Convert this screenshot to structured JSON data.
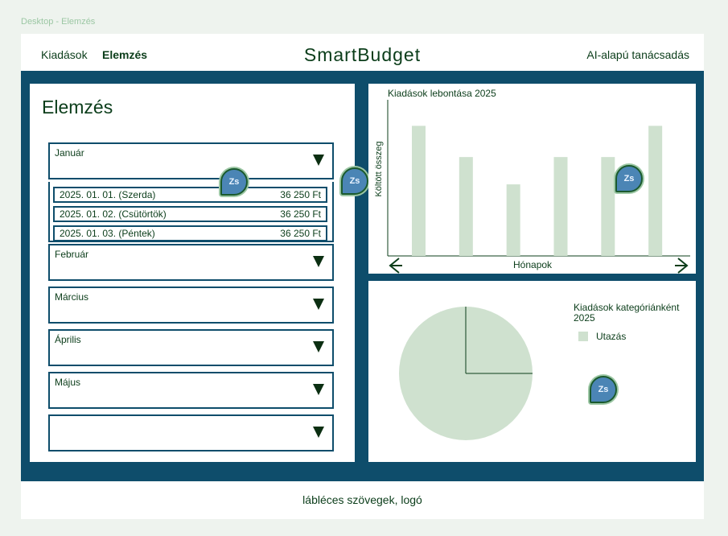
{
  "frame_label": "Desktop - Elemzés",
  "header": {
    "nav": [
      "Kiadások",
      "Elemzés"
    ],
    "active_nav": "Elemzés",
    "brand": "SmartBudget",
    "ai_link": "AI-alapú tanácsadás"
  },
  "analysis": {
    "title": "Elemzés",
    "months": [
      "Január",
      "Február",
      "Március",
      "Április",
      "Május",
      ""
    ],
    "january_entries": [
      {
        "date": "2025. 01. 01.  (Szerda)",
        "amount": "36 250 Ft"
      },
      {
        "date": "2025. 01. 02.  (Csütörtök)",
        "amount": "36 250 Ft"
      },
      {
        "date": "2025. 01. 03.  (Péntek)",
        "amount": "36 250 Ft"
      }
    ]
  },
  "comment_avatar": "Zs",
  "chart_data": [
    {
      "type": "bar",
      "title": "Kiadások lebontása 2025",
      "xlabel": "Hónapok",
      "ylabel": "Költött összeg",
      "categories": [
        "",
        "",
        "",
        "",
        "",
        ""
      ],
      "values": [
        100,
        76,
        55,
        76,
        76,
        100
      ],
      "ylim": [
        0,
        120
      ],
      "grid": false,
      "colors": {
        "bar": "#cfe1cf",
        "axis": "#0b3d1a"
      }
    },
    {
      "type": "pie",
      "title": "Kiadások kategóriánként 2025",
      "labels": [
        "Utazás"
      ],
      "values": [
        100
      ],
      "legend_position": "right",
      "colors": {
        "slice": "#cfe1cf",
        "divider": "#0b3d1a"
      }
    }
  ],
  "footer": {
    "text": "lábléces szövegek, logó"
  },
  "colors": {
    "accent": "#0e4d6b",
    "text": "#0b3d1a",
    "chart_fill": "#cfe1cf",
    "avatar": "#4b85b5"
  }
}
